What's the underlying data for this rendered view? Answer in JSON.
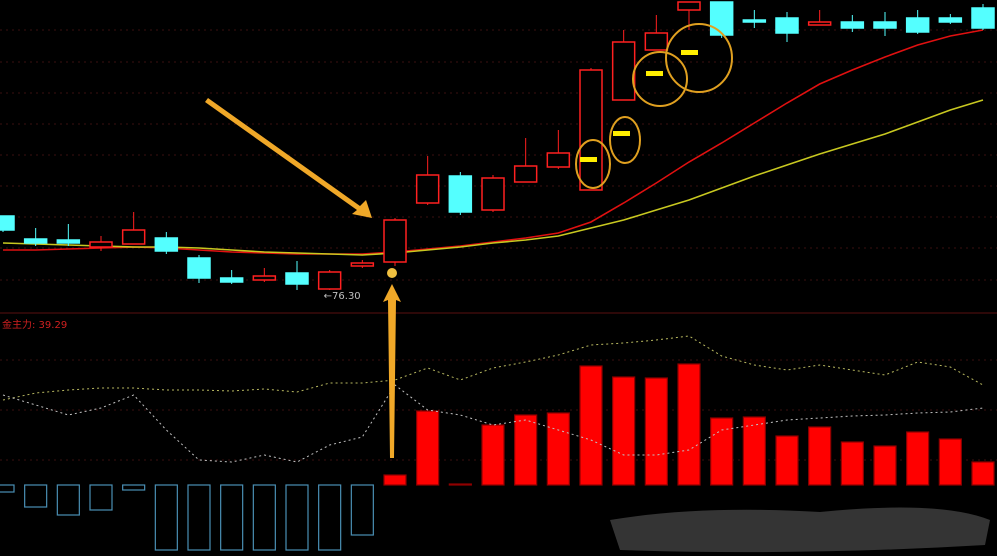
{
  "chart_data": [
    {
      "type": "candlestick",
      "open": [
        90.36,
        85.99,
        85.8,
        84.47,
        85.04,
        86.18,
        82.38,
        78.58,
        78.2,
        79.53,
        76.49,
        80.86,
        81.62,
        92.83,
        97.96,
        91.5,
        96.82,
        99.67,
        95.3,
        112.4,
        121.9,
        129.5,
        131.02,
        127.6,
        127.98,
        126.65,
        127.22,
        127.22,
        127.98,
        127.98,
        129.88
      ],
      "close": [
        87.7,
        85.23,
        85.23,
        85.42,
        87.7,
        83.71,
        78.58,
        77.82,
        78.96,
        77.44,
        79.72,
        81.43,
        89.6,
        98.15,
        91.12,
        97.58,
        99.86,
        102.33,
        118.1,
        123.42,
        125.13,
        131.02,
        124.75,
        127.22,
        125.13,
        127.22,
        126.08,
        126.08,
        125.32,
        127.22,
        126.08
      ],
      "high": [
        90.36,
        88.08,
        88.84,
        86.56,
        91.12,
        87.32,
        82.95,
        80.1,
        80.48,
        81.82,
        80.1,
        82.0,
        89.98,
        101.76,
        98.72,
        98.15,
        105.18,
        106.7,
        118.48,
        125.7,
        128.55,
        131.02,
        131.02,
        129.5,
        129.12,
        129.5,
        128.55,
        129.12,
        129.5,
        128.74,
        130.64
      ],
      "low": [
        87.32,
        84.66,
        84.66,
        83.71,
        85.04,
        83.14,
        77.63,
        77.44,
        77.82,
        76.3,
        76.3,
        80.48,
        80.86,
        92.45,
        90.55,
        91.12,
        96.82,
        99.29,
        95.3,
        112.4,
        121.9,
        125.7,
        124.18,
        126.08,
        123.42,
        126.65,
        125.32,
        124.56,
        124.94,
        126.84,
        125.7
      ],
      "up_color": "#ff2020",
      "down_color": "#54ffff",
      "series": [
        {
          "color": "#e01010",
          "values": [
            83.9,
            83.9,
            84.09,
            84.28,
            84.47,
            84.28,
            83.9,
            83.52,
            83.33,
            83.14,
            83.14,
            83.14,
            83.52,
            84.09,
            84.66,
            85.42,
            86.18,
            87.13,
            89.22,
            92.83,
            96.63,
            100.62,
            104.23,
            108.03,
            111.83,
            115.44,
            118.1,
            120.57,
            122.85,
            124.56,
            125.7
          ]
        },
        {
          "color": "#c8c820",
          "values": [
            85.23,
            85.04,
            84.85,
            84.66,
            84.47,
            84.47,
            84.28,
            83.9,
            83.52,
            83.33,
            83.14,
            82.95,
            83.33,
            83.9,
            84.47,
            85.23,
            85.8,
            86.56,
            88.08,
            89.6,
            91.5,
            93.4,
            95.68,
            97.96,
            100.05,
            102.14,
            104.04,
            105.94,
            108.22,
            110.5,
            112.4
          ]
        }
      ],
      "annotation": "←76.30",
      "ylim": [
        72.5,
        131.4
      ]
    },
    {
      "type": "bar",
      "title": "金主力: 39.29",
      "values": [
        -11.96,
        -37.58,
        -51.24,
        -42.7,
        -8.54,
        -111.02,
        -111.02,
        -111.02,
        -111.02,
        -111.02,
        -111.02,
        -85.4,
        17.08,
        126.39,
        1.71,
        102.48,
        119.56,
        122.98,
        203.25,
        184.46,
        182.76,
        206.67,
        114.44,
        116.14,
        83.69,
        99.06,
        73.44,
        66.61,
        90.52,
        78.57,
        39.29
      ],
      "up_color": "#ff0000",
      "down_color": "#4a8fb5",
      "title_color": "#d02020",
      "series": [
        {
          "color": "#b8b860",
          "values": [
            145.18,
            157.14,
            162.26,
            165.68,
            165.68,
            162.26,
            162.26,
            160.55,
            163.97,
            158.84,
            174.22,
            174.22,
            179.34,
            199.84,
            179.34,
            199.84,
            210.08,
            222.04,
            239.12,
            242.54,
            247.66,
            254.49,
            220.33,
            204.96,
            196.42,
            204.96,
            196.42,
            187.88,
            210.08,
            201.54,
            170.8
          ]
        },
        {
          "color": "#c0c0c0",
          "values": [
            153.72,
            136.64,
            119.56,
            131.52,
            153.72,
            93.94,
            42.7,
            39.28,
            51.24,
            39.28,
            68.32,
            81.98,
            170.8,
            128.1,
            119.56,
            102.48,
            111.02,
            93.94,
            76.86,
            51.24,
            51.24,
            59.78,
            93.94,
            102.48,
            111.02,
            114.44,
            117.85,
            119.56,
            122.98,
            124.68,
            131.52
          ]
        }
      ],
      "ylim": [
        -119.56,
        290.36
      ]
    }
  ]
}
